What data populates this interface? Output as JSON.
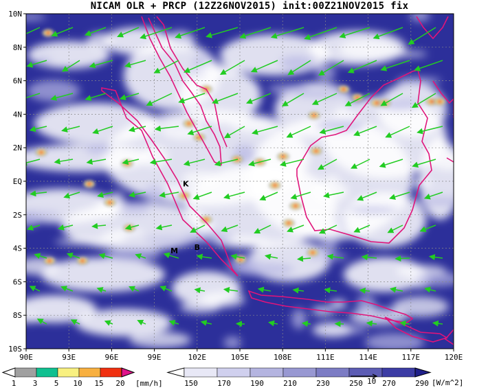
{
  "title": "NICAM OLR + PRCP (12Z26NOV2015) init:00Z21NOV2015 fix",
  "map": {
    "lon_range": [
      90,
      120
    ],
    "lat_range": [
      -10,
      10
    ],
    "lon_ticks": [
      "90E",
      "93E",
      "96E",
      "99E",
      "102E",
      "105E",
      "108E",
      "111E",
      "114E",
      "117E",
      "120E"
    ],
    "lat_ticks": [
      "10N",
      "8N",
      "6N",
      "4N",
      "2N",
      "EQ",
      "2S",
      "4S",
      "6S",
      "8S",
      "10S"
    ],
    "grid": true,
    "background_color": "#2c2f9a",
    "coast_color": "#e0147a",
    "wind_color": "#22cc22",
    "markers": [
      {
        "label": "K",
        "lon": 101.2,
        "lat": -0.3
      },
      {
        "label": "M",
        "lon": 100.4,
        "lat": -4.3
      },
      {
        "label": "B",
        "lon": 102.0,
        "lat": -4.1
      }
    ],
    "vector_ref_label": "10"
  },
  "prcp_colorbar": {
    "labels": [
      "1",
      "3",
      "5",
      "10",
      "15",
      "20"
    ],
    "unit": "[mm/h]",
    "colors": [
      "#a0a0a0",
      "#10c090",
      "#f8f080",
      "#f8b040",
      "#f03010",
      "#e0148a"
    ]
  },
  "olr_colorbar": {
    "labels": [
      "150",
      "170",
      "190",
      "210",
      "230",
      "250",
      "270",
      "290"
    ],
    "unit": "[W/m^2]",
    "colors": [
      "#ffffff",
      "#e8e8f6",
      "#d0d0ee",
      "#b4b4e0",
      "#9898d2",
      "#7c7cc4",
      "#5c5cb4",
      "#3c3ca4",
      "#20208a"
    ]
  }
}
